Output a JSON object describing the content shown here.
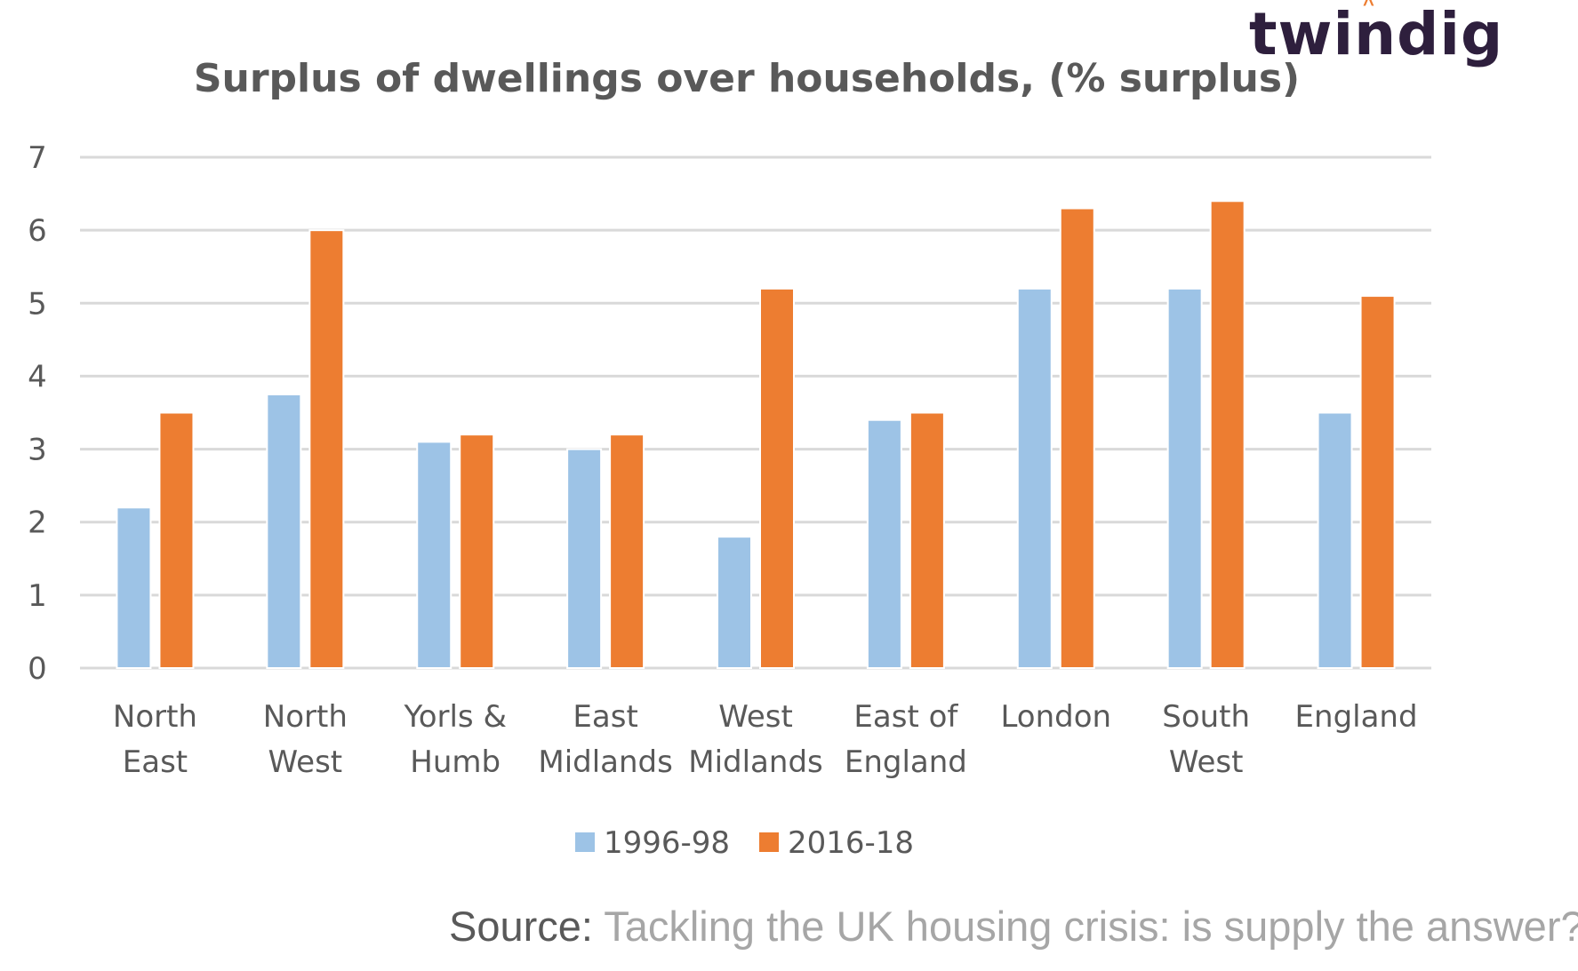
{
  "brand": {
    "name": "twindig",
    "accent_color": "#ed7d31",
    "text_color": "#2e1f3d"
  },
  "source": {
    "label": "Source:",
    "text": "Tackling the UK housing crisis: is supply the answer?"
  },
  "chart_data": {
    "type": "bar",
    "title": "Surplus of dwellings over households, (% surplus)",
    "xlabel": "",
    "ylabel": "",
    "ylim": [
      0,
      7
    ],
    "yticks": [
      0,
      1,
      2,
      3,
      4,
      5,
      6,
      7
    ],
    "grid": true,
    "legend_position": "bottom",
    "categories": [
      [
        "North",
        "East"
      ],
      [
        "North",
        "West"
      ],
      [
        "Yorls &",
        "Humb"
      ],
      [
        "East",
        "Midlands"
      ],
      [
        "West",
        "Midlands"
      ],
      [
        "East of",
        "England"
      ],
      [
        "London"
      ],
      [
        "South",
        "West"
      ],
      [
        "England"
      ]
    ],
    "series": [
      {
        "name": "1996-98",
        "color": "#9dc3e6",
        "values": [
          2.2,
          3.75,
          3.1,
          3.0,
          1.8,
          3.4,
          5.2,
          5.2,
          3.5
        ]
      },
      {
        "name": "2016-18",
        "color": "#ed7d31",
        "values": [
          3.5,
          6.0,
          3.2,
          3.2,
          5.2,
          3.5,
          6.3,
          6.4,
          5.1
        ]
      }
    ]
  }
}
